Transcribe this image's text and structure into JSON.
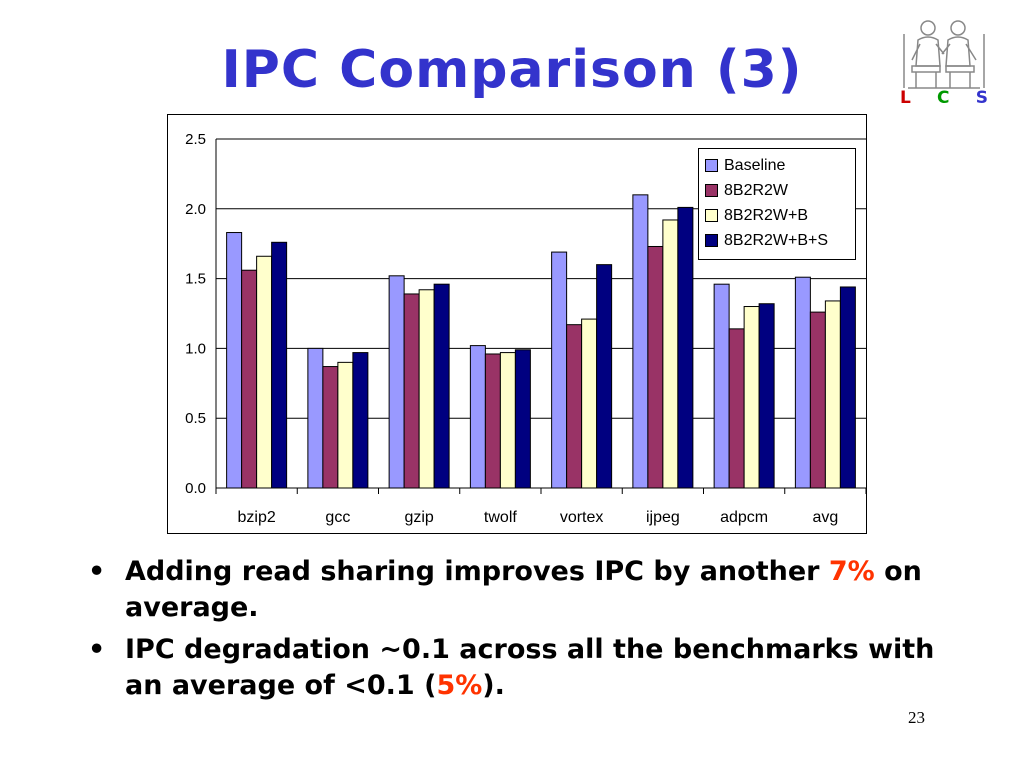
{
  "slide": {
    "title": "IPC Comparison (3)",
    "page_number": "23",
    "logo": {
      "letters": [
        "L",
        "C",
        "S"
      ],
      "colors": [
        "#cc0000",
        "#009900",
        "#3333cc"
      ]
    }
  },
  "bullets": [
    {
      "before": "Adding read sharing improves IPC by another ",
      "highlight": "7%",
      "after": " on average."
    },
    {
      "before": "IPC degradation ~0.1 across all the benchmarks with an average of <0.1 (",
      "highlight": "5%",
      "after": ")."
    }
  ],
  "chart_data": {
    "type": "bar",
    "title": "",
    "xlabel": "",
    "ylabel": "",
    "ylim": [
      0,
      2.5
    ],
    "yticks": [
      "0.0",
      "0.5",
      "1.0",
      "1.5",
      "2.0",
      "2.5"
    ],
    "grid": true,
    "legend_position": "top-right",
    "categories": [
      "bzip2",
      "gcc",
      "gzip",
      "twolf",
      "vortex",
      "ijpeg",
      "adpcm",
      "avg"
    ],
    "series": [
      {
        "name": "Baseline",
        "color": "#9999ff",
        "values": [
          1.83,
          1.0,
          1.52,
          1.02,
          1.69,
          2.1,
          1.46,
          1.51
        ]
      },
      {
        "name": "8B2R2W",
        "color": "#993366",
        "values": [
          1.56,
          0.87,
          1.39,
          0.96,
          1.17,
          1.73,
          1.14,
          1.26
        ]
      },
      {
        "name": "8B2R2W+B",
        "color": "#ffffcc",
        "values": [
          1.66,
          0.9,
          1.42,
          0.97,
          1.21,
          1.92,
          1.3,
          1.34
        ]
      },
      {
        "name": "8B2R2W+B+S",
        "color": "#000080",
        "values": [
          1.76,
          0.97,
          1.46,
          0.99,
          1.6,
          2.01,
          1.32,
          1.44
        ]
      }
    ]
  }
}
